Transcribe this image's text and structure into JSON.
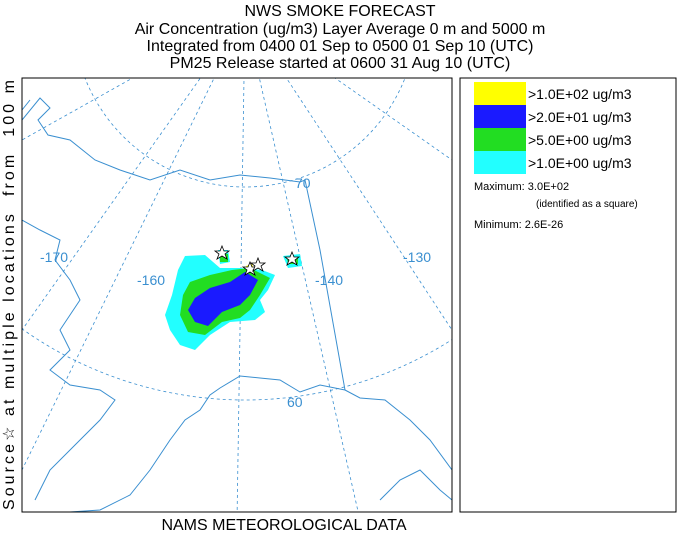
{
  "title": "NWS SMOKE FORECAST",
  "subtitle_lines": [
    "Air Concentration (ug/m3) Layer Average    0 m and  5000 m",
    "Integrated from 0400 01 Sep to 0500 01 Sep 10 (UTC)",
    "PM25 Release started at 0600 31 Aug 10 (UTC)"
  ],
  "side_label": "Source☆ at multiple locations  from  100 m",
  "footer": "NAMS METEOROLOGICAL DATA",
  "map": {
    "lon_labels": [
      "-170",
      "-160",
      "-140",
      "-130"
    ],
    "lat_labels": [
      "70",
      "60"
    ]
  },
  "legend": {
    "items": [
      {
        "label": ">1.0E+02 ug/m3",
        "color": "#ffff00"
      },
      {
        "label": ">2.0E+01 ug/m3",
        "color": "#1a1aff"
      },
      {
        "label": ">5.0E+00 ug/m3",
        "color": "#22dd22"
      },
      {
        "label": ">1.0E+00 ug/m3",
        "color": "#22ffff"
      }
    ],
    "maximum": "Maximum: 3.0E+02",
    "maximum_note": "(identified as a square)",
    "minimum": "Minimum: 2.6E-26"
  }
}
